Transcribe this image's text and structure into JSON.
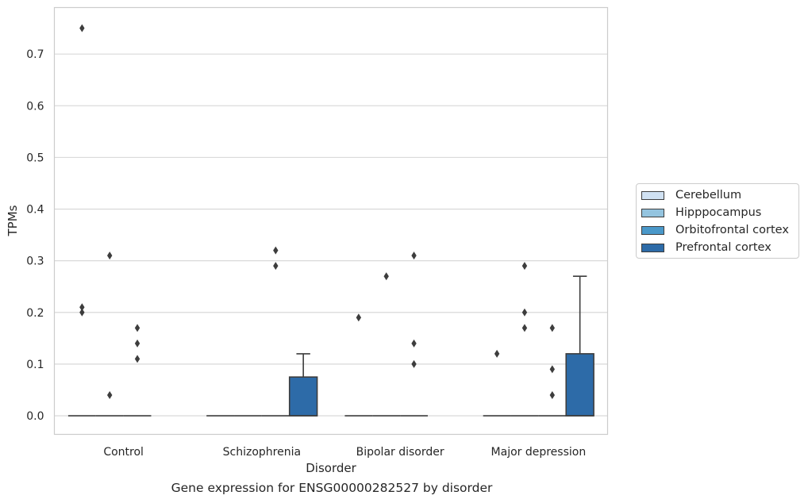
{
  "chart_data": {
    "type": "box",
    "title": "",
    "xlabel": "Disorder",
    "ylabel": "TPMs",
    "caption": "Gene expression for ENSG00000282527 by disorder",
    "categories": [
      "Control",
      "Schizophrenia",
      "Bipolar disorder",
      "Major depression"
    ],
    "ylim": [
      -0.036,
      0.79
    ],
    "yticks": [
      0.0,
      0.1,
      0.2,
      0.3,
      0.4,
      0.5,
      0.6,
      0.7
    ],
    "ytick_labels": [
      "0.0",
      "0.1",
      "0.2",
      "0.3",
      "0.4",
      "0.5",
      "0.6",
      "0.7"
    ],
    "grid": "horizontal",
    "legend_position": "right",
    "series": [
      {
        "name": "Cerebellum",
        "color": "#d0e1f2",
        "boxes": [
          {
            "q1": 0,
            "median": 0,
            "q3": 0,
            "whisker_low": 0,
            "whisker_high": 0,
            "outliers": [
              0.75,
              0.21,
              0.2
            ]
          },
          {
            "q1": 0,
            "median": 0,
            "q3": 0,
            "whisker_low": 0,
            "whisker_high": 0,
            "outliers": []
          },
          {
            "q1": 0,
            "median": 0,
            "q3": 0,
            "whisker_low": 0,
            "whisker_high": 0,
            "outliers": [
              0.19
            ]
          },
          {
            "q1": 0,
            "median": 0,
            "q3": 0,
            "whisker_low": 0,
            "whisker_high": 0,
            "outliers": [
              0.12
            ]
          }
        ]
      },
      {
        "name": "Hipppocampus",
        "color": "#94c4df",
        "boxes": [
          {
            "q1": 0,
            "median": 0,
            "q3": 0,
            "whisker_low": 0,
            "whisker_high": 0,
            "outliers": [
              0.31,
              0.04
            ]
          },
          {
            "q1": 0,
            "median": 0,
            "q3": 0,
            "whisker_low": 0,
            "whisker_high": 0,
            "outliers": []
          },
          {
            "q1": 0,
            "median": 0,
            "q3": 0,
            "whisker_low": 0,
            "whisker_high": 0,
            "outliers": [
              0.27
            ]
          },
          {
            "q1": 0,
            "median": 0,
            "q3": 0,
            "whisker_low": 0,
            "whisker_high": 0,
            "outliers": [
              0.29,
              0.2,
              0.17
            ]
          }
        ]
      },
      {
        "name": "Orbitofrontal cortex",
        "color": "#4a98c9",
        "boxes": [
          {
            "q1": 0,
            "median": 0,
            "q3": 0,
            "whisker_low": 0,
            "whisker_high": 0,
            "outliers": [
              0.17,
              0.14,
              0.11
            ]
          },
          {
            "q1": 0,
            "median": 0,
            "q3": 0,
            "whisker_low": 0,
            "whisker_high": 0,
            "outliers": [
              0.32,
              0.29
            ]
          },
          {
            "q1": 0,
            "median": 0,
            "q3": 0,
            "whisker_low": 0,
            "whisker_high": 0,
            "outliers": [
              0.31,
              0.14,
              0.1
            ]
          },
          {
            "q1": 0,
            "median": 0,
            "q3": 0,
            "whisker_low": 0,
            "whisker_high": 0,
            "outliers": [
              0.17,
              0.09,
              0.04
            ]
          }
        ]
      },
      {
        "name": "Prefrontal cortex",
        "color": "#2d6ba8",
        "boxes": [
          null,
          {
            "q1": 0,
            "median": 0,
            "q3": 0.075,
            "whisker_low": 0,
            "whisker_high": 0.12,
            "outliers": []
          },
          null,
          {
            "q1": 0,
            "median": 0,
            "q3": 0.12,
            "whisker_low": 0,
            "whisker_high": 0.27,
            "outliers": []
          }
        ]
      }
    ]
  }
}
